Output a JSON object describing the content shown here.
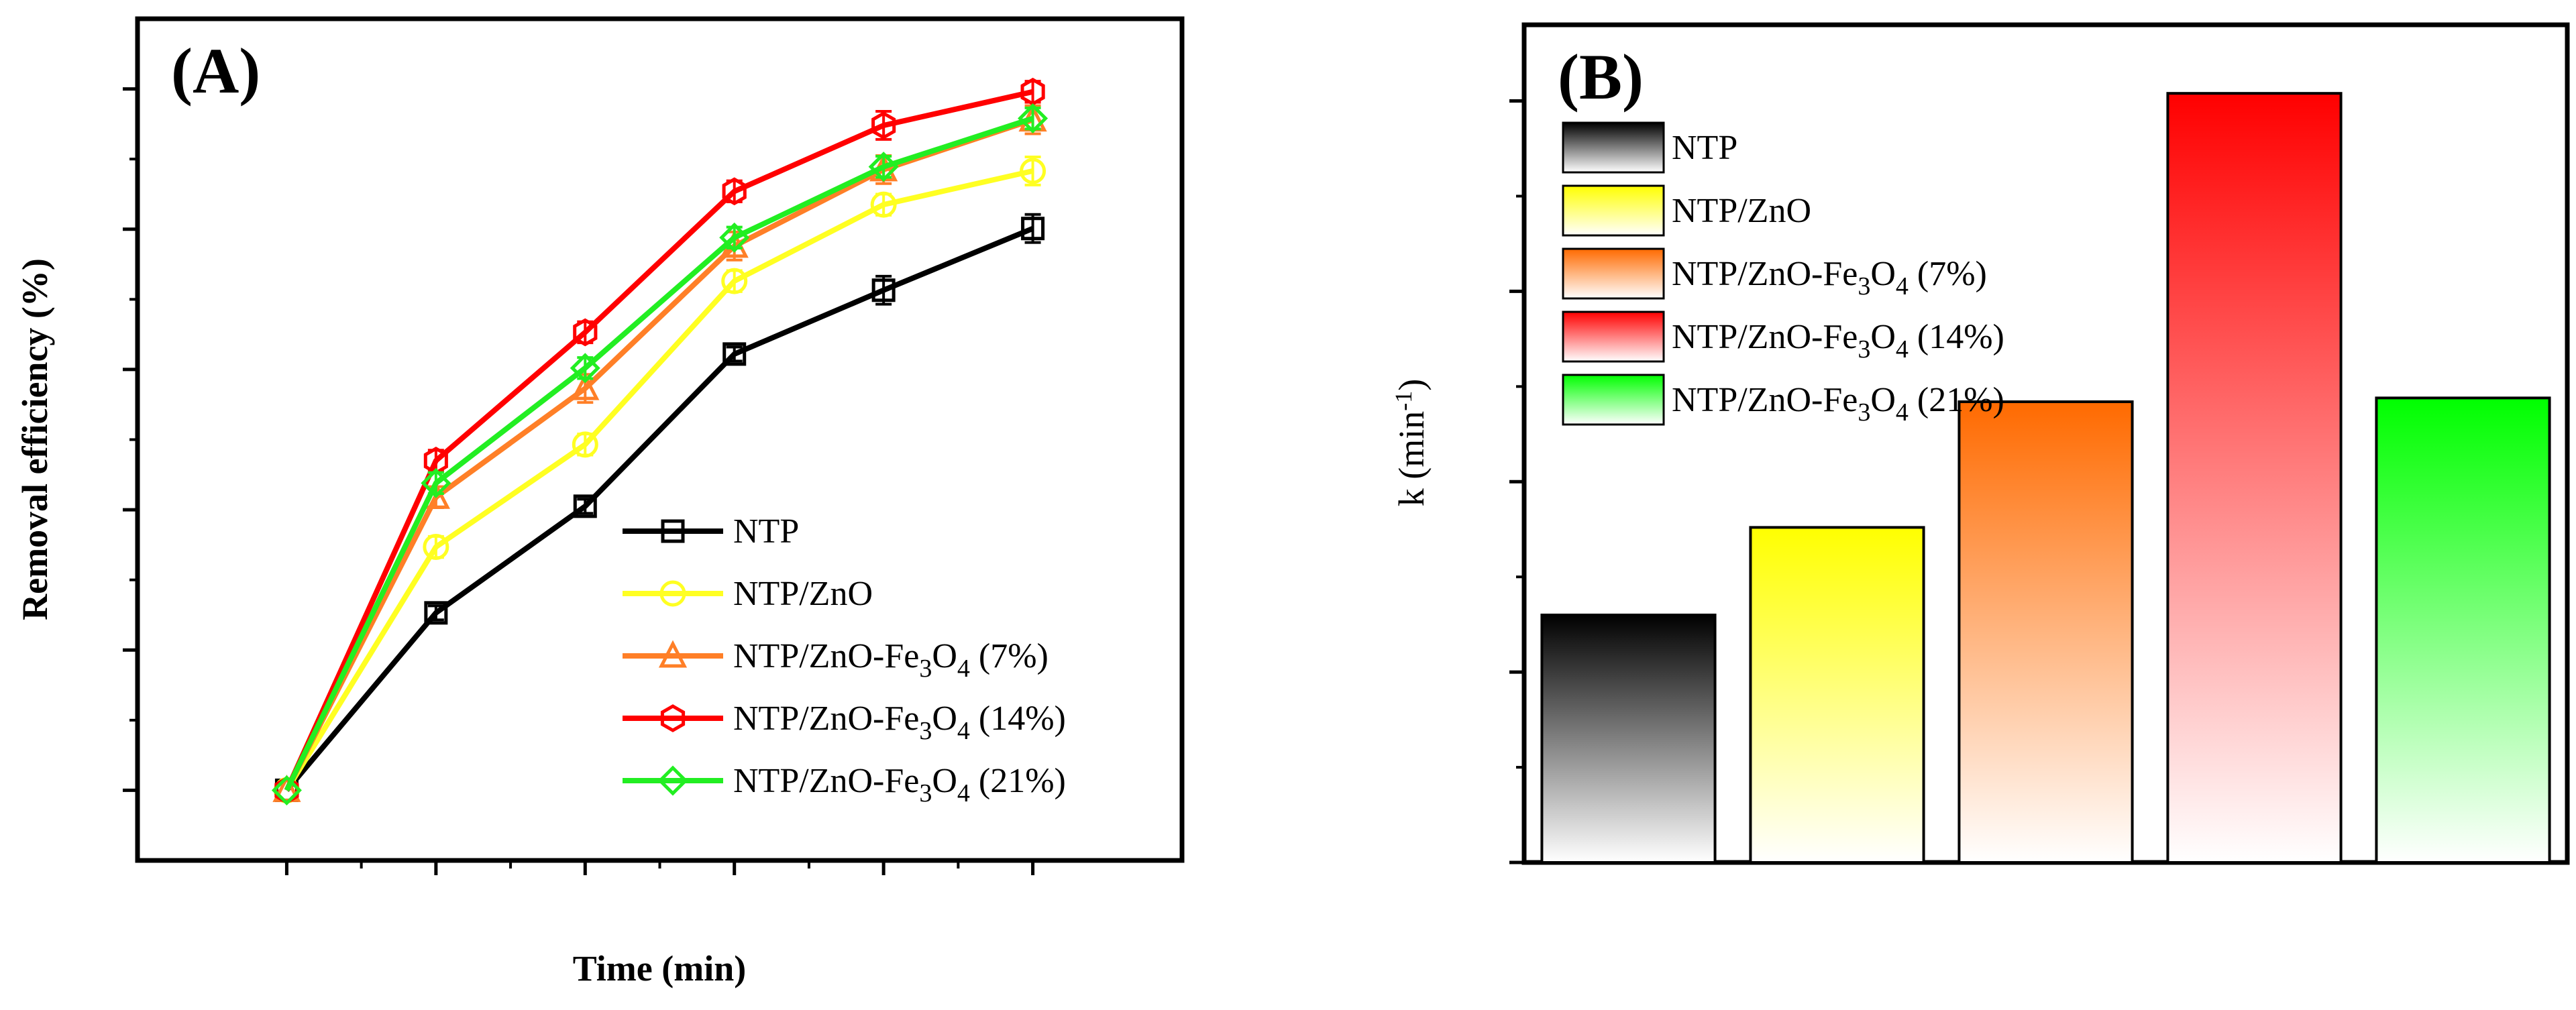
{
  "chart_data": [
    {
      "type": "line",
      "panel_label": "(A)",
      "xlabel": "Time (min)",
      "ylabel": "Removal efficiency (%)",
      "xlim": [
        -5,
        30
      ],
      "ylim": [
        -10,
        110
      ],
      "x_ticks": [
        "0",
        "5",
        "10",
        "15",
        "20",
        "25"
      ],
      "y_ticks": [
        "0",
        "20",
        "40",
        "60",
        "80",
        "100"
      ],
      "x": [
        0,
        5,
        10,
        15,
        20,
        25
      ],
      "legend_position": "bottom-right",
      "grid": false,
      "series": [
        {
          "name": "NTP",
          "legend": {
            "base": "NTP",
            "sub1": "",
            "mid": "",
            "sub2": "",
            "tail": ""
          },
          "color": "#000000",
          "marker": "square",
          "values": [
            0,
            25.3,
            40.5,
            62.2,
            71.3,
            80.1
          ],
          "errors": [
            0,
            1.0,
            1.0,
            1.0,
            2.0,
            2.0
          ]
        },
        {
          "name": "NTP/ZnO",
          "legend": {
            "base": "NTP/ZnO",
            "sub1": "",
            "mid": "",
            "sub2": "",
            "tail": ""
          },
          "color": "#ffff22",
          "marker": "circle",
          "values": [
            0,
            34.7,
            49.3,
            72.6,
            83.5,
            88.3
          ],
          "errors": [
            0,
            1.5,
            1.5,
            1.5,
            1.5,
            2.0
          ]
        },
        {
          "name": "NTP/ZnO-Fe3O4 (7%)",
          "legend": {
            "base": "NTP/ZnO-Fe",
            "sub1": "3",
            "mid": "O",
            "sub2": "4",
            "tail": " (7%)"
          },
          "color": "#ff7f27",
          "marker": "triangle",
          "values": [
            0,
            41.8,
            57.3,
            77.6,
            88.5,
            95.6
          ],
          "errors": [
            0,
            1.5,
            2.0,
            2.0,
            2.0,
            2.0
          ]
        },
        {
          "name": "NTP/ZnO-Fe3O4 (14%)",
          "legend": {
            "base": "NTP/ZnO-Fe",
            "sub1": "3",
            "mid": "O",
            "sub2": "4",
            "tail": " (14%)"
          },
          "color": "#ff0000",
          "marker": "hexagon",
          "values": [
            0,
            47.0,
            65.3,
            85.4,
            94.8,
            99.6
          ],
          "errors": [
            0,
            1.5,
            1.5,
            1.5,
            2.0,
            1.5
          ]
        },
        {
          "name": "NTP/ZnO-Fe3O4 (21%)",
          "legend": {
            "base": "NTP/ZnO-Fe",
            "sub1": "3",
            "mid": "O",
            "sub2": "4",
            "tail": " (21%)"
          },
          "color": "#22ee22",
          "marker": "diamond",
          "values": [
            0,
            43.8,
            60.2,
            78.8,
            88.9,
            95.8
          ],
          "errors": [
            0,
            1.5,
            1.5,
            1.5,
            1.5,
            1.5
          ]
        }
      ]
    },
    {
      "type": "bar",
      "panel_label": "(B)",
      "xlabel": "",
      "ylabel": {
        "base": "k (min",
        "sup": "-1",
        "tail": ")"
      },
      "ylim": [
        0,
        0.22
      ],
      "y_ticks": [
        "0.00",
        "0.05",
        "0.10",
        "0.15",
        "0.20"
      ],
      "legend_position": "top-left",
      "grid": false,
      "categories": [
        "NTP",
        "NTP/ZnO",
        "NTP/ZnO-Fe3O4 (7%)",
        "NTP/ZnO-Fe3O4 (14%)",
        "NTP/ZnO-Fe3O4 (21%)"
      ],
      "legend": [
        {
          "base": "NTP",
          "sub1": "",
          "mid": "",
          "sub2": "",
          "tail": ""
        },
        {
          "base": "NTP/ZnO",
          "sub1": "",
          "mid": "",
          "sub2": "",
          "tail": ""
        },
        {
          "base": "NTP/ZnO-Fe",
          "sub1": "3",
          "mid": "O",
          "sub2": "4",
          "tail": " (7%)"
        },
        {
          "base": "NTP/ZnO-Fe",
          "sub1": "3",
          "mid": "O",
          "sub2": "4",
          "tail": " (14%)"
        },
        {
          "base": "NTP/ZnO-Fe",
          "sub1": "3",
          "mid": "O",
          "sub2": "4",
          "tail": " (21%)"
        }
      ],
      "values": [
        0.065,
        0.088,
        0.121,
        0.202,
        0.122
      ],
      "colors": [
        "#000000",
        "#ffff00",
        "#ff6a00",
        "#ff0000",
        "#00ff00"
      ]
    }
  ]
}
